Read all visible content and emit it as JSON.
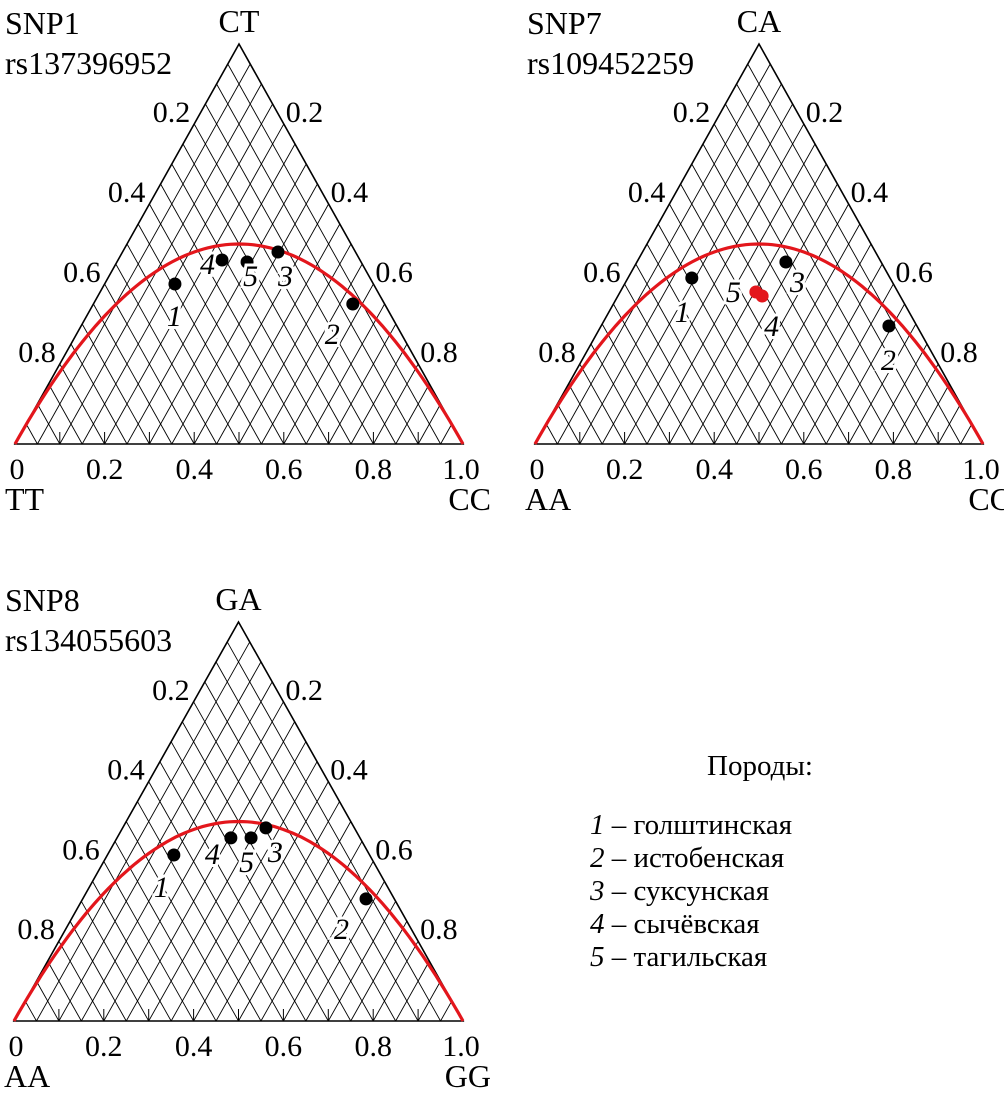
{
  "chart_data": [
    {
      "type": "scatter",
      "subtype": "de-finetti-ternary",
      "title": "SNP1",
      "subtitle": "rs137396952",
      "apex_label": "CT",
      "left_label": "TT",
      "right_label": "CC",
      "base_ticks": [
        "0",
        "0.2",
        "0.4",
        "0.6",
        "0.8",
        "1.0"
      ],
      "side_ticks": [
        "0.2",
        "0.4",
        "0.6",
        "0.8"
      ],
      "x_meaning": "allele frequency (0 at TT, 1 at CC)",
      "y_meaning": "heterozygote frequency",
      "curve": "Hardy-Weinberg parabola H = 2p(1-p)",
      "curve_color": "#e3161c",
      "points": [
        {
          "label": "1",
          "x": 0.357,
          "y": 0.4,
          "color": "#000000"
        },
        {
          "label": "2",
          "x": 0.754,
          "y": 0.35,
          "color": "#000000"
        },
        {
          "label": "3",
          "x": 0.587,
          "y": 0.48,
          "color": "#000000"
        },
        {
          "label": "4",
          "x": 0.462,
          "y": 0.46,
          "color": "#000000"
        },
        {
          "label": "5",
          "x": 0.518,
          "y": 0.455,
          "color": "#000000"
        }
      ]
    },
    {
      "type": "scatter",
      "subtype": "de-finetti-ternary",
      "title": "SNP7",
      "subtitle": "rs109452259",
      "apex_label": "CA",
      "left_label": "AA",
      "right_label": "CC",
      "base_ticks": [
        "0",
        "0.2",
        "0.4",
        "0.6",
        "0.8",
        "1.0"
      ],
      "side_ticks": [
        "0.2",
        "0.4",
        "0.6",
        "0.8"
      ],
      "curve_color": "#e3161c",
      "points": [
        {
          "label": "1",
          "x": 0.35,
          "y": 0.415,
          "color": "#000000"
        },
        {
          "label": "2",
          "x": 0.79,
          "y": 0.295,
          "color": "#000000"
        },
        {
          "label": "3",
          "x": 0.56,
          "y": 0.455,
          "color": "#000000"
        },
        {
          "label": "4",
          "x": 0.507,
          "y": 0.37,
          "color": "#e3161c"
        },
        {
          "label": "5",
          "x": 0.493,
          "y": 0.38,
          "color": "#e3161c"
        }
      ]
    },
    {
      "type": "scatter",
      "subtype": "de-finetti-ternary",
      "title": "SNP8",
      "subtitle": "rs134055603",
      "apex_label": "GA",
      "left_label": "AA",
      "right_label": "GG",
      "base_ticks": [
        "0",
        "0.2",
        "0.4",
        "0.6",
        "0.8",
        "1.0"
      ],
      "side_ticks": [
        "0.2",
        "0.4",
        "0.6",
        "0.8"
      ],
      "curve_color": "#e3161c",
      "points": [
        {
          "label": "1",
          "x": 0.356,
          "y": 0.416,
          "color": "#000000"
        },
        {
          "label": "2",
          "x": 0.784,
          "y": 0.306,
          "color": "#000000"
        },
        {
          "label": "3",
          "x": 0.561,
          "y": 0.484,
          "color": "#000000"
        },
        {
          "label": "4",
          "x": 0.483,
          "y": 0.459,
          "color": "#000000"
        },
        {
          "label": "5",
          "x": 0.528,
          "y": 0.459,
          "color": "#000000"
        }
      ]
    }
  ],
  "legend": {
    "title": "Породы:",
    "items": [
      {
        "num": "1",
        "name": "– голштинская"
      },
      {
        "num": "2",
        "name": "– истобенская"
      },
      {
        "num": "3",
        "name": "– суксунская"
      },
      {
        "num": "4",
        "name": "– сычёвская"
      },
      {
        "num": "5",
        "name": "– тагильская"
      }
    ]
  }
}
